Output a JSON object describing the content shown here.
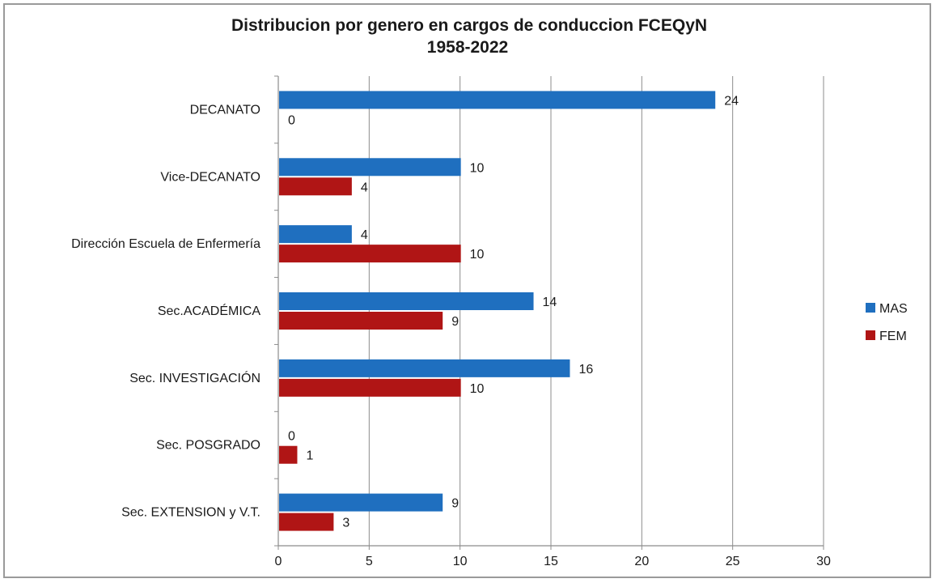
{
  "chart_data": {
    "type": "bar",
    "orientation": "horizontal",
    "title": "Distribucion por genero en cargos de conduccion  FCEQyN",
    "subtitle": "1958-2022",
    "categories": [
      "DECANATO",
      "Vice-DECANATO",
      "Dirección Escuela de Enfermería",
      "Sec.ACADÉMICA",
      "Sec. INVESTIGACIÓN",
      "Sec. POSGRADO",
      "Sec. EXTENSION y V.T."
    ],
    "series": [
      {
        "name": "MAS",
        "color": "#1f6fbf",
        "values": [
          24,
          10,
          4,
          14,
          16,
          0,
          9
        ]
      },
      {
        "name": "FEM",
        "color": "#b01515",
        "values": [
          0,
          4,
          10,
          9,
          10,
          1,
          3
        ]
      }
    ],
    "xlim": [
      0,
      30
    ],
    "xticks": [
      0,
      5,
      10,
      15,
      20,
      25,
      30
    ],
    "xlabel": "",
    "ylabel": "",
    "grid": "vertical",
    "legend_position": "right",
    "data_labels": true
  }
}
